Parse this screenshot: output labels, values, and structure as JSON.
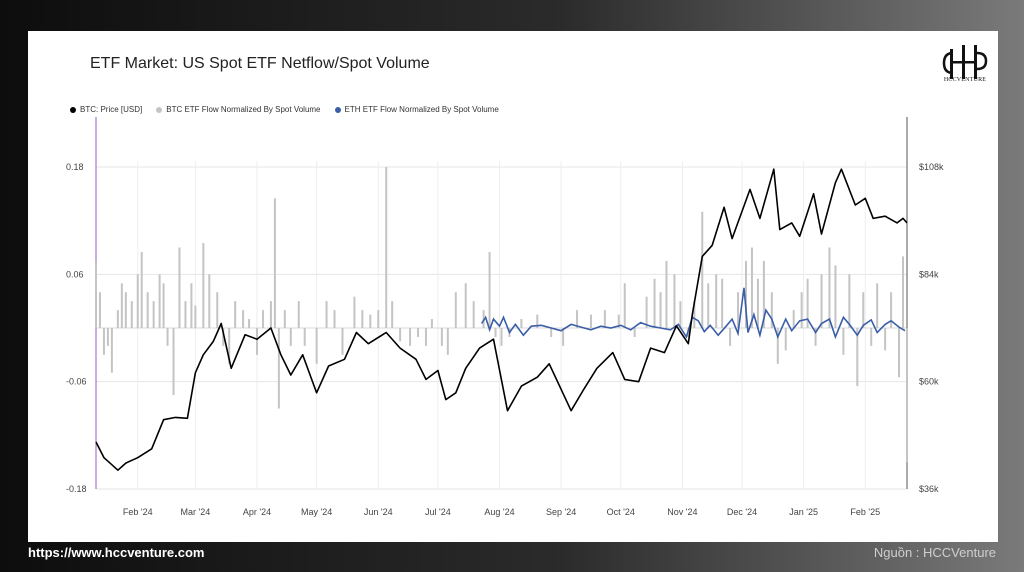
{
  "title": "ETF Market: US Spot ETF Netflow/Spot Volume",
  "logo_text": "HCCVENTURE",
  "footer": {
    "url": "https://www.hccventure.com",
    "source": "Nguồn : HCCVenture"
  },
  "colors": {
    "price": "#000000",
    "btc_flow": "#c4c4c4",
    "eth_flow": "#3b5ea8",
    "marker": "#9a5fbf"
  },
  "chart_data": {
    "type": "line",
    "title": "ETF Market: US Spot ETF Netflow/Spot Volume",
    "legend": [
      {
        "name": "BTC: Price [USD]",
        "color": "#000000"
      },
      {
        "name": "BTC ETF Flow Normalized By Spot Volume",
        "color": "#c4c4c4"
      },
      {
        "name": "ETH ETF Flow Normalized By Spot Volume",
        "color": "#3b5ea8"
      }
    ],
    "legend_position": "top-left",
    "x_ticks": [
      "Feb '24",
      "Mar '24",
      "Apr '24",
      "May '24",
      "Jun '24",
      "Jul '24",
      "Aug '24",
      "Sep '24",
      "Oct '24",
      "Nov '24",
      "Dec '24",
      "Jan '25",
      "Feb '25"
    ],
    "y_left": {
      "ticks": [
        "0.18",
        "0.06",
        "-0.06",
        "-0.18"
      ],
      "ylim": [
        -0.18,
        0.18
      ]
    },
    "y_right": {
      "ticks": [
        "$108k",
        "$84k",
        "$60k",
        "$36k"
      ],
      "ylim": [
        36000,
        108000
      ]
    },
    "grid": true,
    "series": [
      {
        "name": "BTC: Price [USD]",
        "axis": "right",
        "points": [
          [
            "2024-01-11",
            46500
          ],
          [
            "2024-01-15",
            43000
          ],
          [
            "2024-01-22",
            40200
          ],
          [
            "2024-01-26",
            41800
          ],
          [
            "2024-02-01",
            43000
          ],
          [
            "2024-02-08",
            45000
          ],
          [
            "2024-02-14",
            51500
          ],
          [
            "2024-02-20",
            52000
          ],
          [
            "2024-02-26",
            51800
          ],
          [
            "2024-03-01",
            62000
          ],
          [
            "2024-03-05",
            66000
          ],
          [
            "2024-03-10",
            69000
          ],
          [
            "2024-03-14",
            73000
          ],
          [
            "2024-03-19",
            63000
          ],
          [
            "2024-03-26",
            70500
          ],
          [
            "2024-04-01",
            69500
          ],
          [
            "2024-04-08",
            72000
          ],
          [
            "2024-04-13",
            66000
          ],
          [
            "2024-04-18",
            61500
          ],
          [
            "2024-04-24",
            66000
          ],
          [
            "2024-05-01",
            57500
          ],
          [
            "2024-05-07",
            63500
          ],
          [
            "2024-05-15",
            65000
          ],
          [
            "2024-05-21",
            71000
          ],
          [
            "2024-05-27",
            68500
          ],
          [
            "2024-06-05",
            71000
          ],
          [
            "2024-06-12",
            67500
          ],
          [
            "2024-06-20",
            65000
          ],
          [
            "2024-06-25",
            60500
          ],
          [
            "2024-07-01",
            62500
          ],
          [
            "2024-07-05",
            56000
          ],
          [
            "2024-07-10",
            57500
          ],
          [
            "2024-07-15",
            63000
          ],
          [
            "2024-07-22",
            67500
          ],
          [
            "2024-07-29",
            69500
          ],
          [
            "2024-08-05",
            53500
          ],
          [
            "2024-08-12",
            59000
          ],
          [
            "2024-08-20",
            61000
          ],
          [
            "2024-08-26",
            64000
          ],
          [
            "2024-09-06",
            53500
          ],
          [
            "2024-09-12",
            58000
          ],
          [
            "2024-09-19",
            63000
          ],
          [
            "2024-09-27",
            66500
          ],
          [
            "2024-10-03",
            60500
          ],
          [
            "2024-10-10",
            60000
          ],
          [
            "2024-10-16",
            67500
          ],
          [
            "2024-10-23",
            66500
          ],
          [
            "2024-10-29",
            72500
          ],
          [
            "2024-11-04",
            68500
          ],
          [
            "2024-11-06",
            75000
          ],
          [
            "2024-11-11",
            88000
          ],
          [
            "2024-11-16",
            90500
          ],
          [
            "2024-11-22",
            99000
          ],
          [
            "2024-11-26",
            92000
          ],
          [
            "2024-12-05",
            103000
          ],
          [
            "2024-12-10",
            96500
          ],
          [
            "2024-12-17",
            107500
          ],
          [
            "2024-12-20",
            94000
          ],
          [
            "2024-12-26",
            95500
          ],
          [
            "2024-12-30",
            92500
          ],
          [
            "2025-01-06",
            102000
          ],
          [
            "2025-01-10",
            93000
          ],
          [
            "2025-01-17",
            104500
          ],
          [
            "2025-01-20",
            107500
          ],
          [
            "2025-01-27",
            99500
          ],
          [
            "2025-02-01",
            101000
          ],
          [
            "2025-02-05",
            96500
          ],
          [
            "2025-02-11",
            97000
          ],
          [
            "2025-02-17",
            95500
          ],
          [
            "2025-02-20",
            96500
          ],
          [
            "2025-02-22",
            95500
          ]
        ]
      },
      {
        "name": "BTC ETF Flow Normalized By Spot Volume",
        "axis": "left",
        "type": "bar",
        "points": [
          [
            "2024-01-11",
            0.075
          ],
          [
            "2024-01-13",
            0.04
          ],
          [
            "2024-01-15",
            -0.03
          ],
          [
            "2024-01-17",
            -0.02
          ],
          [
            "2024-01-19",
            -0.05
          ],
          [
            "2024-01-22",
            0.02
          ],
          [
            "2024-01-24",
            0.05
          ],
          [
            "2024-01-26",
            0.04
          ],
          [
            "2024-01-29",
            0.03
          ],
          [
            "2024-02-01",
            0.06
          ],
          [
            "2024-02-03",
            0.085
          ],
          [
            "2024-02-06",
            0.04
          ],
          [
            "2024-02-09",
            0.03
          ],
          [
            "2024-02-12",
            0.06
          ],
          [
            "2024-02-14",
            0.05
          ],
          [
            "2024-02-16",
            -0.02
          ],
          [
            "2024-02-19",
            -0.075
          ],
          [
            "2024-02-22",
            0.09
          ],
          [
            "2024-02-25",
            0.03
          ],
          [
            "2024-02-28",
            0.05
          ],
          [
            "2024-03-01",
            0.025
          ],
          [
            "2024-03-05",
            0.095
          ],
          [
            "2024-03-08",
            0.06
          ],
          [
            "2024-03-12",
            0.04
          ],
          [
            "2024-03-15",
            -0.02
          ],
          [
            "2024-03-18",
            -0.04
          ],
          [
            "2024-03-21",
            0.03
          ],
          [
            "2024-03-25",
            0.02
          ],
          [
            "2024-03-28",
            0.01
          ],
          [
            "2024-04-01",
            -0.03
          ],
          [
            "2024-04-04",
            0.02
          ],
          [
            "2024-04-08",
            0.03
          ],
          [
            "2024-04-10",
            0.145
          ],
          [
            "2024-04-12",
            -0.09
          ],
          [
            "2024-04-15",
            0.02
          ],
          [
            "2024-04-18",
            -0.02
          ],
          [
            "2024-04-22",
            0.03
          ],
          [
            "2024-04-25",
            -0.02
          ],
          [
            "2024-05-01",
            -0.04
          ],
          [
            "2024-05-06",
            0.03
          ],
          [
            "2024-05-10",
            0.02
          ],
          [
            "2024-05-14",
            -0.03
          ],
          [
            "2024-05-20",
            0.035
          ],
          [
            "2024-05-24",
            0.02
          ],
          [
            "2024-05-28",
            0.015
          ],
          [
            "2024-06-01",
            0.02
          ],
          [
            "2024-06-05",
            0.18
          ],
          [
            "2024-06-08",
            0.03
          ],
          [
            "2024-06-12",
            -0.015
          ],
          [
            "2024-06-17",
            -0.02
          ],
          [
            "2024-06-21",
            -0.01
          ],
          [
            "2024-06-25",
            -0.02
          ],
          [
            "2024-06-28",
            0.01
          ],
          [
            "2024-07-03",
            -0.02
          ],
          [
            "2024-07-06",
            -0.03
          ],
          [
            "2024-07-10",
            0.04
          ],
          [
            "2024-07-15",
            0.05
          ],
          [
            "2024-07-19",
            0.03
          ],
          [
            "2024-07-24",
            0.02
          ],
          [
            "2024-07-27",
            0.085
          ],
          [
            "2024-07-30",
            -0.01
          ],
          [
            "2024-08-02",
            -0.02
          ],
          [
            "2024-08-06",
            -0.01
          ],
          [
            "2024-08-12",
            0.01
          ],
          [
            "2024-08-20",
            0.015
          ],
          [
            "2024-08-27",
            -0.01
          ],
          [
            "2024-09-02",
            -0.02
          ],
          [
            "2024-09-09",
            0.02
          ],
          [
            "2024-09-16",
            0.015
          ],
          [
            "2024-09-23",
            0.02
          ],
          [
            "2024-09-30",
            0.015
          ],
          [
            "2024-10-03",
            0.05
          ],
          [
            "2024-10-08",
            -0.01
          ],
          [
            "2024-10-14",
            0.035
          ],
          [
            "2024-10-18",
            0.055
          ],
          [
            "2024-10-21",
            0.04
          ],
          [
            "2024-10-24",
            0.075
          ],
          [
            "2024-10-28",
            0.06
          ],
          [
            "2024-10-31",
            0.03
          ],
          [
            "2024-11-04",
            -0.01
          ],
          [
            "2024-11-07",
            0.03
          ],
          [
            "2024-11-11",
            0.13
          ],
          [
            "2024-11-14",
            0.05
          ],
          [
            "2024-11-18",
            0.06
          ],
          [
            "2024-11-21",
            0.055
          ],
          [
            "2024-11-25",
            -0.02
          ],
          [
            "2024-11-29",
            0.04
          ],
          [
            "2024-12-03",
            0.075
          ],
          [
            "2024-12-06",
            0.09
          ],
          [
            "2024-12-09",
            0.055
          ],
          [
            "2024-12-12",
            0.075
          ],
          [
            "2024-12-16",
            0.04
          ],
          [
            "2024-12-19",
            -0.04
          ],
          [
            "2024-12-23",
            -0.025
          ],
          [
            "2024-12-27",
            0.02
          ],
          [
            "2024-12-31",
            0.04
          ],
          [
            "2025-01-03",
            0.055
          ],
          [
            "2025-01-07",
            -0.02
          ],
          [
            "2025-01-10",
            0.06
          ],
          [
            "2025-01-14",
            0.09
          ],
          [
            "2025-01-17",
            0.07
          ],
          [
            "2025-01-21",
            -0.03
          ],
          [
            "2025-01-24",
            0.06
          ],
          [
            "2025-01-28",
            -0.065
          ],
          [
            "2025-01-31",
            0.04
          ],
          [
            "2025-02-04",
            -0.02
          ],
          [
            "2025-02-07",
            0.05
          ],
          [
            "2025-02-11",
            -0.025
          ],
          [
            "2025-02-14",
            0.04
          ],
          [
            "2025-02-18",
            -0.055
          ],
          [
            "2025-02-20",
            0.08
          ],
          [
            "2025-02-22",
            -0.15
          ]
        ]
      },
      {
        "name": "ETH ETF Flow Normalized By Spot Volume",
        "axis": "left",
        "points": [
          [
            "2024-07-23",
            0.005
          ],
          [
            "2024-07-25",
            0.012
          ],
          [
            "2024-07-27",
            -0.002
          ],
          [
            "2024-07-29",
            0.01
          ],
          [
            "2024-08-01",
            0.002
          ],
          [
            "2024-08-03",
            0.012
          ],
          [
            "2024-08-06",
            -0.005
          ],
          [
            "2024-08-09",
            0.004
          ],
          [
            "2024-08-13",
            -0.008
          ],
          [
            "2024-08-17",
            0.002
          ],
          [
            "2024-08-22",
            0.003
          ],
          [
            "2024-08-27",
            0.0
          ],
          [
            "2024-09-01",
            -0.003
          ],
          [
            "2024-09-06",
            0.004
          ],
          [
            "2024-09-11",
            0.001
          ],
          [
            "2024-09-16",
            -0.002
          ],
          [
            "2024-09-21",
            0.002
          ],
          [
            "2024-09-26",
            0.0
          ],
          [
            "2024-10-01",
            0.003
          ],
          [
            "2024-10-06",
            -0.002
          ],
          [
            "2024-10-11",
            0.006
          ],
          [
            "2024-10-16",
            0.002
          ],
          [
            "2024-10-21",
            0.0
          ],
          [
            "2024-10-26",
            -0.002
          ],
          [
            "2024-10-30",
            0.004
          ],
          [
            "2024-11-03",
            -0.01
          ],
          [
            "2024-11-06",
            0.012
          ],
          [
            "2024-11-09",
            0.008
          ],
          [
            "2024-11-12",
            -0.004
          ],
          [
            "2024-11-15",
            0.003
          ],
          [
            "2024-11-19",
            -0.008
          ],
          [
            "2024-11-23",
            0.002
          ],
          [
            "2024-11-26",
            0.01
          ],
          [
            "2024-11-29",
            -0.006
          ],
          [
            "2024-12-02",
            0.045
          ],
          [
            "2024-12-04",
            -0.005
          ],
          [
            "2024-12-07",
            0.015
          ],
          [
            "2024-12-10",
            -0.008
          ],
          [
            "2024-12-13",
            0.02
          ],
          [
            "2024-12-16",
            0.01
          ],
          [
            "2024-12-19",
            -0.01
          ],
          [
            "2024-12-23",
            0.01
          ],
          [
            "2024-12-26",
            -0.003
          ],
          [
            "2024-12-30",
            0.008
          ],
          [
            "2025-01-03",
            0.01
          ],
          [
            "2025-01-07",
            -0.005
          ],
          [
            "2025-01-10",
            0.005
          ],
          [
            "2025-01-14",
            0.01
          ],
          [
            "2025-01-17",
            -0.01
          ],
          [
            "2025-01-21",
            0.012
          ],
          [
            "2025-01-24",
            0.004
          ],
          [
            "2025-01-28",
            -0.008
          ],
          [
            "2025-01-31",
            0.003
          ],
          [
            "2025-02-04",
            0.009
          ],
          [
            "2025-02-07",
            -0.005
          ],
          [
            "2025-02-11",
            0.004
          ],
          [
            "2025-02-14",
            0.008
          ],
          [
            "2025-02-18",
            0.001
          ],
          [
            "2025-02-21",
            -0.003
          ]
        ]
      }
    ]
  }
}
